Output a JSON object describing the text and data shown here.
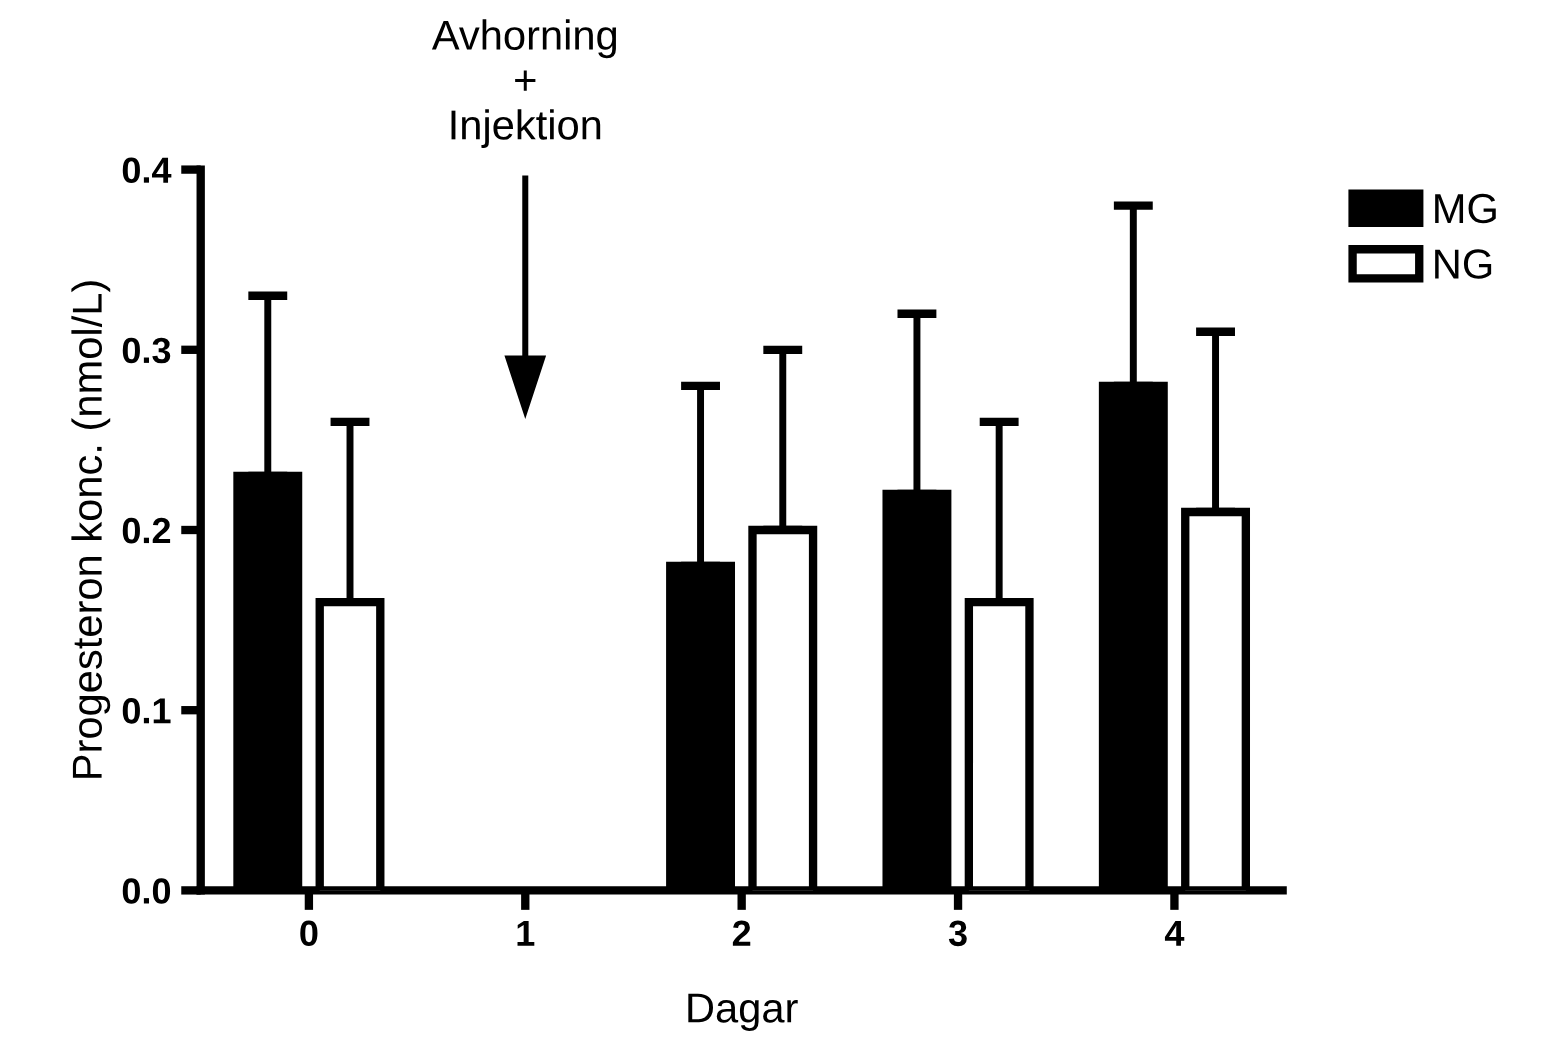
{
  "chart_data": {
    "type": "bar",
    "xlabel": "Dagar",
    "ylabel": "Progesteron konc. (nmol/L)",
    "categories": [
      "0",
      "1",
      "2",
      "3",
      "4"
    ],
    "series": [
      {
        "name": "MG",
        "color": "#000000",
        "values": [
          0.23,
          null,
          0.18,
          0.22,
          0.28
        ],
        "errors": [
          [
            0.23,
            0.33
          ],
          null,
          [
            0.18,
            0.28
          ],
          [
            0.22,
            0.32
          ],
          [
            0.28,
            0.38
          ]
        ]
      },
      {
        "name": "NG",
        "color": "#ffffff",
        "values": [
          0.16,
          null,
          0.2,
          0.16,
          0.21
        ],
        "errors": [
          [
            0.16,
            0.26
          ],
          null,
          [
            0.2,
            0.3
          ],
          [
            0.16,
            0.26
          ],
          [
            0.21,
            0.31
          ]
        ]
      }
    ],
    "ylim": [
      0,
      0.4
    ],
    "yticks": [
      {
        "value": 0,
        "label": "0.0"
      },
      0.1,
      0.2,
      0.3,
      0.4
    ],
    "annotations": [
      "Avhorning\n+\nInjektion"
    ],
    "grid": false,
    "legend": "top right"
  }
}
